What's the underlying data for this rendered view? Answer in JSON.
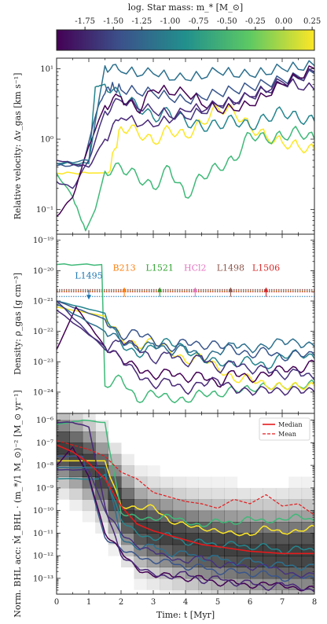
{
  "colorbar": {
    "label": "log. Star mass: m_* [M_⊙]",
    "range": [
      -2.0,
      0.27
    ],
    "ticks": [
      "-1.75",
      "-1.50",
      "-1.25",
      "-1.00",
      "-0.75",
      "-0.50",
      "-0.25",
      "0.00",
      "0.25"
    ],
    "tick_values": [
      -1.75,
      -1.5,
      -1.25,
      -1.0,
      -0.75,
      -0.5,
      -0.25,
      0.0,
      0.25
    ],
    "colormap": [
      "#440154",
      "#3b528b",
      "#21908d",
      "#5dc963",
      "#fde725"
    ]
  },
  "chart_data": [
    {
      "type": "line",
      "panel": "velocity",
      "ylabel": "Relative velocity: Δv_gas [km s⁻¹]",
      "xlim": [
        0,
        8
      ],
      "ylim_log10": [
        -1.35,
        1.15
      ],
      "yscale": "log",
      "y_ticks": [
        "10⁻¹",
        "10⁰",
        "10¹"
      ],
      "series": [
        {
          "color": "#fde725",
          "x": [
            0,
            1,
            1.6,
            2,
            2.5,
            3,
            3.5,
            4,
            4.5,
            5,
            5.5,
            6,
            6.5,
            7,
            7.5,
            8
          ],
          "y": [
            0.33,
            0.33,
            0.33,
            1.5,
            1.3,
            0.9,
            1.4,
            1.1,
            1.7,
            2.8,
            2.5,
            1.5,
            1.1,
            0.9,
            0.8,
            0.7
          ]
        },
        {
          "color": "#3fb978",
          "x": [
            0,
            0.5,
            0.9,
            1.2,
            1.5,
            2,
            2.5,
            3,
            3.5,
            4,
            4.5,
            5,
            5.5,
            6,
            6.5,
            7,
            7.5,
            8
          ],
          "y": [
            0.33,
            0.15,
            0.05,
            0.1,
            0.35,
            0.4,
            0.3,
            0.2,
            0.4,
            0.15,
            0.3,
            0.4,
            0.5,
            1.2,
            1.0,
            1.1,
            1.3,
            1.0
          ]
        },
        {
          "color": "#25858e",
          "x": [
            0,
            1,
            1.2,
            1.5,
            2,
            2.5,
            3,
            3.5,
            4,
            4.5,
            5,
            5.5,
            6,
            6.5,
            7,
            7.5,
            8
          ],
          "y": [
            0.45,
            0.45,
            5.5,
            6.0,
            4.0,
            3.0,
            2.0,
            2.5,
            1.8,
            1.5,
            1.6,
            1.9,
            1.5,
            2.0,
            2.5,
            2.0,
            1.8
          ]
        },
        {
          "color": "#39568c",
          "x": [
            0,
            0.8,
            1.3,
            1.6,
            2,
            3,
            4,
            5,
            6,
            7,
            8
          ],
          "y": [
            0.42,
            0.42,
            3.0,
            5.5,
            5.0,
            4.5,
            3.5,
            4.5,
            5.5,
            7.0,
            8.5
          ]
        },
        {
          "color": "#46337e",
          "x": [
            0,
            0.5,
            1,
            1.5,
            2,
            3,
            4,
            5,
            6,
            7,
            8
          ],
          "y": [
            0.25,
            0.2,
            0.5,
            2.5,
            3.5,
            2.5,
            2.0,
            3.0,
            4.0,
            6.0,
            9.0
          ]
        },
        {
          "color": "#440154",
          "x": [
            0,
            0.5,
            1,
            1.5,
            2,
            2.5,
            3,
            4,
            5,
            6,
            7,
            8
          ],
          "y": [
            0.08,
            0.15,
            0.8,
            3.0,
            4.0,
            2.5,
            5.0,
            4.5,
            2.5,
            3.0,
            6.0,
            10.0
          ]
        },
        {
          "color": "#2d708e",
          "x": [
            0,
            1,
            1.5,
            2,
            3,
            4,
            5,
            6,
            7,
            8
          ],
          "y": [
            0.45,
            0.5,
            11,
            9,
            8.5,
            7,
            9,
            8,
            10,
            11
          ]
        },
        {
          "color": "#482878",
          "x": [
            0,
            1,
            1.5,
            2,
            3,
            4,
            5,
            6,
            7,
            8
          ],
          "y": [
            0.5,
            0.4,
            1.0,
            2.0,
            1.5,
            2.5,
            3.0,
            4.0,
            6.5,
            5.0
          ]
        }
      ]
    },
    {
      "type": "line",
      "panel": "density",
      "ylabel": "Density: ρ_gas [g cm⁻³]",
      "xlim": [
        0,
        8
      ],
      "ylim_log10": [
        -24.7,
        -18.8
      ],
      "yscale": "log",
      "y_ticks": [
        "10⁻²⁴",
        "10⁻²³",
        "10⁻²²",
        "10⁻²¹",
        "10⁻²⁰",
        "10⁻¹⁹"
      ],
      "clouds": [
        {
          "name": "L1495",
          "color": "#1f77b4",
          "t": 1.0,
          "rho_log10": -20.85,
          "arrow": "down",
          "line_log10": -20.85
        },
        {
          "name": "B213",
          "color": "#ff7f0e",
          "t": 2.1,
          "rho_log10": -20.65,
          "arrow": "up",
          "line_log10": -20.68
        },
        {
          "name": "L1521",
          "color": "#2ca02c",
          "t": 3.2,
          "rho_log10": -20.65,
          "arrow": "up",
          "line_log10": -20.66
        },
        {
          "name": "HCl2",
          "color": "#e377c2",
          "t": 4.3,
          "rho_log10": -20.65,
          "arrow": "up",
          "line_log10": -20.64
        },
        {
          "name": "L1498",
          "color": "#8c564b",
          "t": 5.4,
          "rho_log10": -20.65,
          "arrow": "up",
          "line_log10": -20.62
        },
        {
          "name": "L1506",
          "color": "#d62728",
          "t": 6.5,
          "rho_log10": -20.65,
          "arrow": "up",
          "line_log10": -20.7
        }
      ],
      "series": [
        {
          "color": "#3fb978",
          "x": [
            0,
            1.4,
            1.5,
            2,
            2.5,
            3,
            3.5,
            4,
            4.5,
            5,
            5.5,
            6,
            6.5,
            7,
            7.5,
            8
          ],
          "y": [
            -19.8,
            -19.8,
            -23.8,
            -23.5,
            -24.3,
            -24.0,
            -24.2,
            -24.3,
            -24.0,
            -24.1,
            -23.9,
            -23.9,
            -23.8,
            -23.8,
            -23.8,
            -23.7
          ]
        },
        {
          "color": "#fde725",
          "x": [
            0,
            1.5,
            2,
            2.5,
            3,
            3.5,
            4,
            4.5,
            5,
            5.5,
            6,
            6.5,
            7,
            7.5,
            8
          ],
          "y": [
            -21.2,
            -21.5,
            -22.2,
            -22.5,
            -22.3,
            -22.6,
            -23.0,
            -22.8,
            -23.2,
            -23.6,
            -23.5,
            -23.8,
            -23.8,
            -23.8,
            -23.8
          ]
        },
        {
          "color": "#25858e",
          "x": [
            0,
            1.5,
            2,
            2.5,
            3,
            3.5,
            4,
            4.5,
            5,
            5.5,
            6,
            6.5,
            7,
            7.5,
            8
          ],
          "y": [
            -21.0,
            -21.4,
            -22.4,
            -22.8,
            -22.5,
            -22.3,
            -22.6,
            -22.9,
            -23.0,
            -23.1,
            -22.9,
            -23.2,
            -22.8,
            -22.7,
            -22.9
          ]
        },
        {
          "color": "#39568c",
          "x": [
            0,
            1.5,
            2,
            2.5,
            3,
            3.5,
            4,
            4.5,
            5,
            5.5,
            6,
            6.5,
            7,
            7.5,
            8
          ],
          "y": [
            -21.0,
            -21.6,
            -22.2,
            -22.0,
            -22.3,
            -22.6,
            -22.3,
            -22.5,
            -22.4,
            -22.6,
            -22.8,
            -22.6,
            -22.9,
            -22.7,
            -22.8
          ]
        },
        {
          "color": "#440154",
          "x": [
            0,
            0.6,
            1.5,
            2,
            2.5,
            3,
            3.5,
            4,
            4.5,
            5,
            5.5,
            6,
            6.5,
            7,
            7.5,
            8
          ],
          "y": [
            -22.6,
            -21.2,
            -22.5,
            -22.9,
            -23.2,
            -23.5,
            -23.3,
            -23.6,
            -23.4,
            -23.8,
            -23.3,
            -23.6,
            -23.4,
            -23.2,
            -23.3,
            -23.0
          ]
        },
        {
          "color": "#482878",
          "x": [
            0,
            1.5,
            2,
            2.5,
            3,
            3.5,
            4,
            4.5,
            5,
            5.5,
            6,
            6.5,
            7,
            7.5,
            8
          ],
          "y": [
            -21.3,
            -22.5,
            -22.9,
            -23.4,
            -23.8,
            -23.6,
            -24.0,
            -23.7,
            -23.6,
            -23.9,
            -24.0,
            -23.9,
            -24.0,
            -23.9,
            -24.0
          ]
        },
        {
          "color": "#2d708e",
          "x": [
            0,
            1.5,
            2,
            2.5,
            3,
            3.5,
            4,
            4.5,
            5,
            5.5,
            6,
            6.5,
            7,
            7.5,
            8
          ],
          "y": [
            -21.1,
            -22.0,
            -22.3,
            -22.6,
            -22.4,
            -22.7,
            -22.5,
            -22.9,
            -22.7,
            -22.4,
            -22.6,
            -22.5,
            -22.3,
            -22.4,
            -22.5
          ]
        },
        {
          "color": "#46337e",
          "x": [
            0,
            1.5,
            2,
            2.5,
            3,
            3.5,
            4,
            4.5,
            5,
            5.5,
            6,
            6.5,
            7,
            7.5,
            8
          ],
          "y": [
            -21.0,
            -22.6,
            -22.3,
            -22.5,
            -23.0,
            -22.7,
            -23.1,
            -22.8,
            -23.3,
            -23.0,
            -23.3,
            -23.2,
            -23.5,
            -23.3,
            -23.6
          ]
        }
      ]
    },
    {
      "type": "line",
      "panel": "accretion",
      "ylabel": "Norm. BHL acc: Ṁ_BHL · (m_*/1 M_⊙)⁻² [M_⊙ yr⁻¹]",
      "xlabel": "Time: t [Myr]",
      "xlim": [
        0,
        8
      ],
      "ylim_log10": [
        -13.7,
        -5.7
      ],
      "yscale": "log",
      "x_ticks": [
        "0",
        "1",
        "2",
        "3",
        "4",
        "5",
        "6",
        "7",
        "8"
      ],
      "y_ticks": [
        "10⁻¹³",
        "10⁻¹²",
        "10⁻¹¹",
        "10⁻¹⁰",
        "10⁻⁹",
        "10⁻⁸",
        "10⁻⁷",
        "10⁻⁶"
      ],
      "legend": {
        "placement": "top-right",
        "entries": [
          "Median",
          "Mean"
        ]
      },
      "median": {
        "x": [
          0,
          0.5,
          1,
          1.5,
          2,
          2.5,
          3,
          3.5,
          4,
          4.5,
          5,
          5.5,
          6,
          6.5,
          7,
          7.5,
          8
        ],
        "y": [
          -7.1,
          -7.4,
          -7.9,
          -8.6,
          -9.8,
          -10.6,
          -10.9,
          -11.1,
          -11.3,
          -11.5,
          -11.6,
          -11.7,
          -11.8,
          -11.85,
          -11.9,
          -11.9,
          -11.9
        ]
      },
      "mean": {
        "x": [
          0,
          0.5,
          1,
          1.5,
          2,
          2.5,
          3,
          3.5,
          4,
          4.5,
          5,
          5.5,
          6,
          6.5,
          7,
          7.5,
          8
        ],
        "y": [
          -6.9,
          -7.1,
          -7.3,
          -7.6,
          -8.3,
          -8.6,
          -9.2,
          -9.4,
          -9.6,
          -9.7,
          -9.9,
          -9.5,
          -9.7,
          -9.3,
          -9.8,
          -9.7,
          -10.2
        ]
      },
      "series": [
        {
          "color": "#fde725",
          "x": [
            0,
            1.5,
            2,
            2.5,
            3,
            3.5,
            4,
            4.5,
            5,
            5.5,
            6,
            6.5,
            7,
            7.5,
            8
          ],
          "y": [
            -7.8,
            -7.8,
            -9.8,
            -9.9,
            -9.8,
            -10.5,
            -10.6,
            -10.8,
            -10.9,
            -11.0,
            -11.1,
            -10.7,
            -11.0,
            -10.9,
            -10.7
          ]
        },
        {
          "color": "#3fb978",
          "x": [
            0,
            0.8,
            1.5,
            2,
            2.5,
            3,
            3.5,
            4,
            4.5,
            5,
            5.5,
            6,
            6.5,
            7,
            7.5,
            8
          ],
          "y": [
            -6.2,
            -6.0,
            -6.1,
            -10.1,
            -10.3,
            -10.4,
            -10.2,
            -10.5,
            -10.7,
            -10.4,
            -10.6,
            -10.3,
            -10.5,
            -10.4,
            -10.2,
            -10.5
          ]
        },
        {
          "color": "#25858e",
          "x": [
            0,
            1.3,
            1.5,
            2,
            2.5,
            3,
            3.5,
            4,
            4.5,
            5,
            5.5,
            6,
            6.5,
            7,
            7.5,
            8
          ],
          "y": [
            -8.6,
            -8.6,
            -8.4,
            -10.4,
            -11.0,
            -11.3,
            -11.0,
            -11.5,
            -11.3,
            -11.6,
            -11.4,
            -11.7,
            -11.5,
            -11.9,
            -11.6,
            -11.8
          ]
        },
        {
          "color": "#39568c",
          "x": [
            0,
            0.8,
            1.5,
            2,
            2.5,
            3,
            3.5,
            4,
            4.5,
            5,
            5.5,
            6,
            6.5,
            7,
            7.5,
            8
          ],
          "y": [
            -7.6,
            -7.6,
            -11.2,
            -11.7,
            -12.0,
            -12.3,
            -12.2,
            -12.6,
            -12.4,
            -12.8,
            -12.6,
            -12.9,
            -12.7,
            -13.1,
            -12.9,
            -13.0
          ]
        },
        {
          "color": "#440154",
          "x": [
            0,
            0.5,
            1,
            1.5,
            2,
            2.5,
            3,
            3.5,
            4,
            4.5,
            5,
            5.5,
            6,
            6.5,
            7,
            7.5,
            8
          ],
          "y": [
            -8.0,
            -7.2,
            -8.5,
            -11.0,
            -11.8,
            -12.6,
            -12.9,
            -12.8,
            -13.1,
            -12.9,
            -13.3,
            -13.1,
            -13.4,
            -13.2,
            -13.3,
            -13.5,
            -13.4
          ]
        },
        {
          "color": "#482878",
          "x": [
            0,
            0.5,
            1,
            1.5,
            2,
            2.5,
            3,
            3.5,
            4,
            4.5,
            5,
            5.5,
            6,
            6.5,
            7,
            7.5,
            8
          ],
          "y": [
            -6.1,
            -6.1,
            -6.3,
            -9.8,
            -12.0,
            -12.5,
            -12.8,
            -13.0,
            -12.7,
            -13.2,
            -12.9,
            -13.3,
            -13.1,
            -13.5,
            -13.2,
            -13.4,
            -13.6
          ]
        },
        {
          "color": "#2d708e",
          "x": [
            0,
            1.5,
            2,
            2.5,
            3,
            3.5,
            4,
            4.5,
            5,
            5.5,
            6,
            6.5,
            7,
            7.5,
            8
          ],
          "y": [
            -8.1,
            -8.1,
            -11.2,
            -11.7,
            -11.5,
            -12.0,
            -11.8,
            -12.2,
            -12.0,
            -12.4,
            -12.1,
            -12.5,
            -12.3,
            -12.6,
            -12.4
          ]
        },
        {
          "color": "#46337e",
          "x": [
            0,
            1,
            1.5,
            2,
            2.5,
            3,
            3.5,
            4,
            4.5,
            5,
            5.5,
            6,
            6.5,
            7,
            7.5,
            8
          ],
          "y": [
            -8.2,
            -8.2,
            -10.0,
            -11.0,
            -11.6,
            -11.8,
            -12.1,
            -12.3,
            -12.0,
            -12.5,
            -12.3,
            -12.6,
            -12.4,
            -12.7,
            -12.9,
            -12.8
          ]
        }
      ]
    }
  ]
}
